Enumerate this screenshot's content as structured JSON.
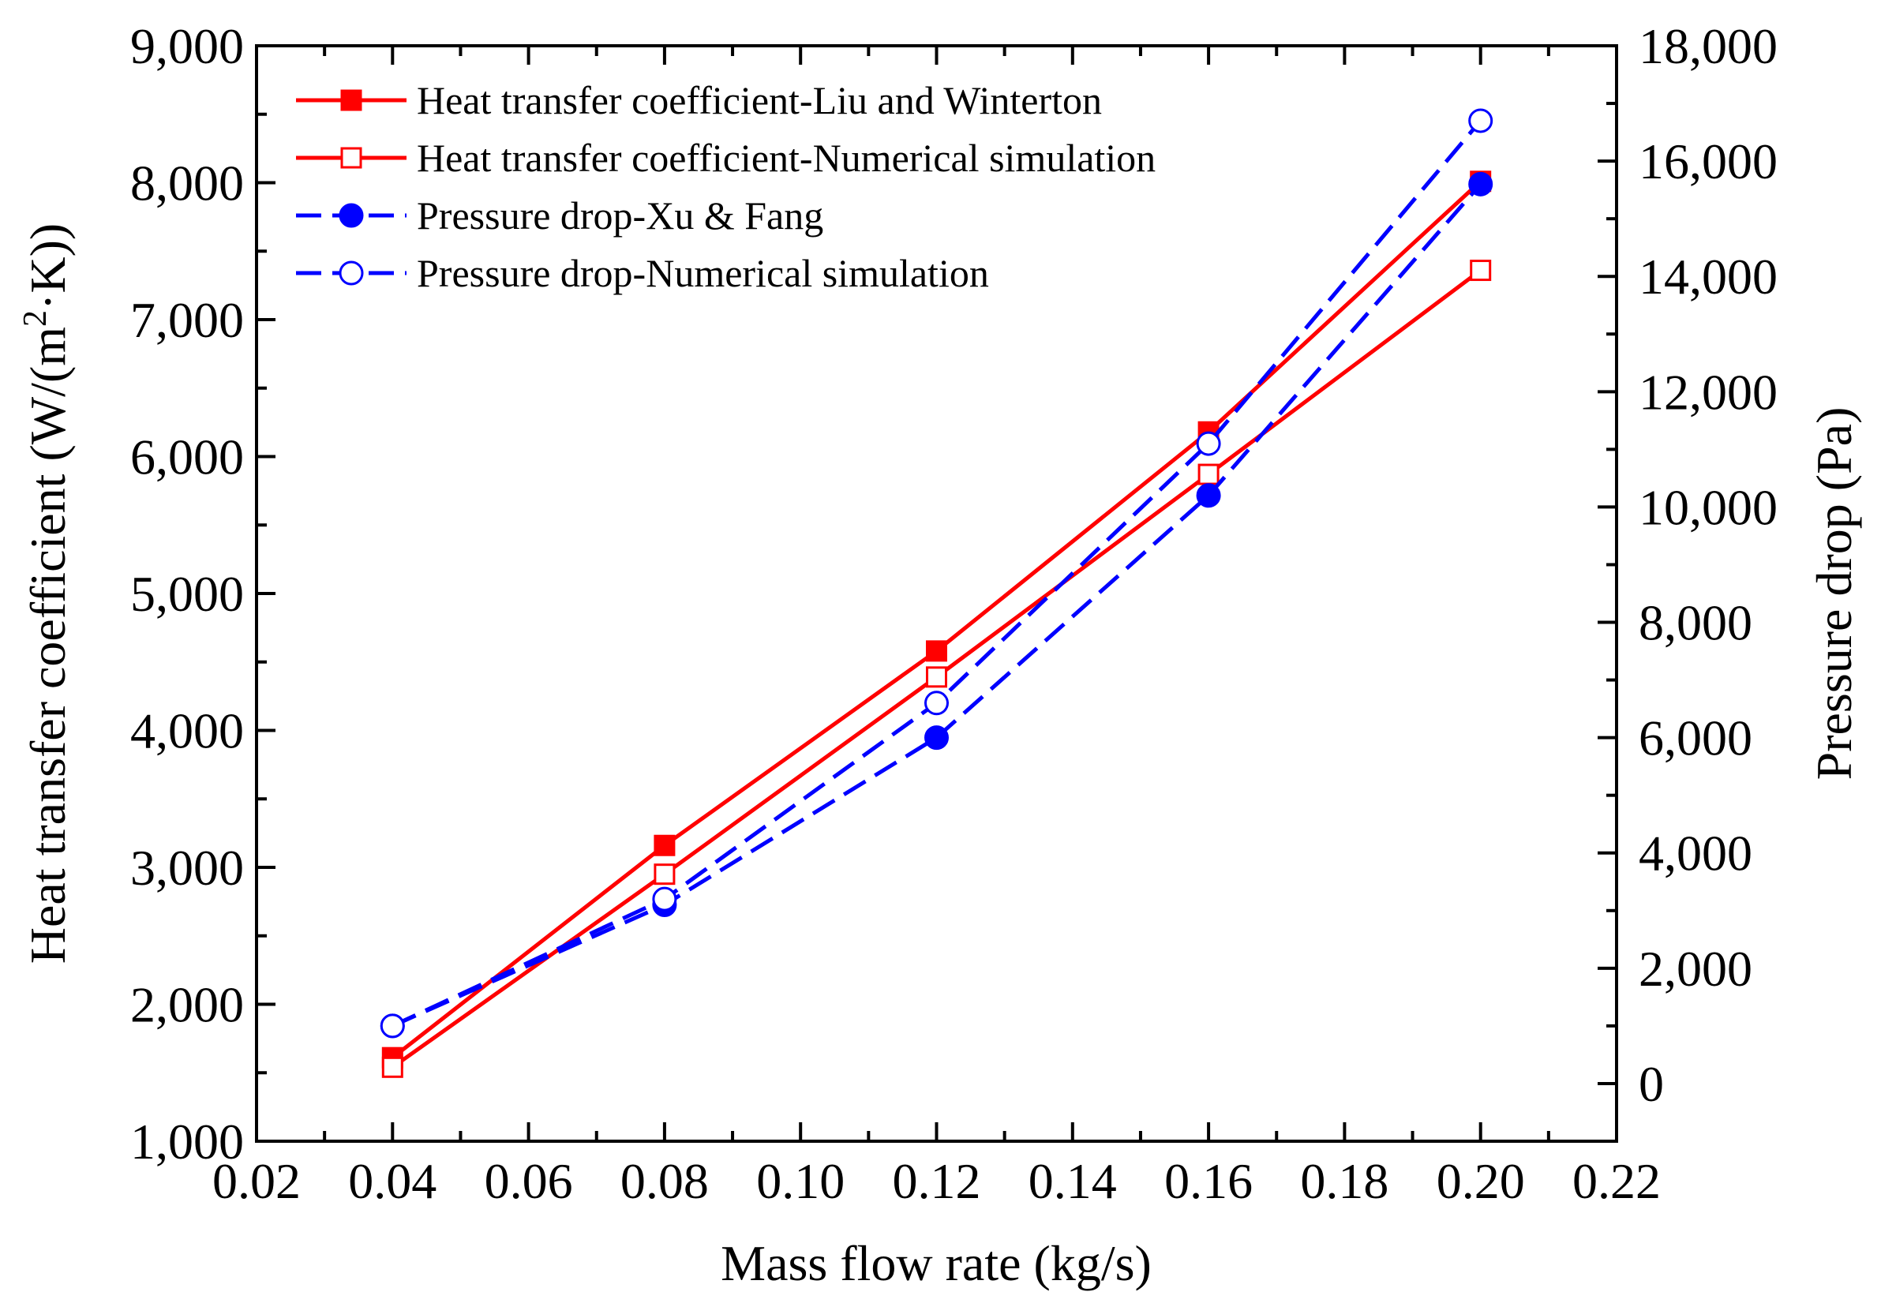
{
  "chart_data": {
    "type": "line",
    "title": "",
    "xlabel": "Mass flow rate (kg/s)",
    "ylabel_parts": [
      "Heat transfer coefficient (W/(m",
      "2",
      "·K))"
    ],
    "ylabel": "Heat transfer coefficient (W/(m2·K))",
    "y2label": "Pressure drop (Pa)",
    "xlim": [
      0.02,
      0.22
    ],
    "ylim": [
      1000,
      9000
    ],
    "y2lim": [
      -1000,
      18000
    ],
    "x_ticks": [
      "0.02",
      "0.04",
      "0.06",
      "0.08",
      "0.10",
      "0.12",
      "0.14",
      "0.16",
      "0.18",
      "0.20",
      "0.22"
    ],
    "y_ticks": [
      "1,000",
      "2,000",
      "3,000",
      "4,000",
      "5,000",
      "6,000",
      "7,000",
      "8,000",
      "9,000"
    ],
    "y2_ticks": [
      "0",
      "2,000",
      "4,000",
      "6,000",
      "8,000",
      "10,000",
      "12,000",
      "14,000",
      "16,000",
      "18,000"
    ],
    "legend_position": "top-left",
    "series": [
      {
        "name": "Heat transfer coefficient-Liu and Winterton",
        "axis": "left",
        "color": "#ff0000",
        "dash": "solid",
        "marker": "square-filled",
        "x": [
          0.04,
          0.08,
          0.12,
          0.16,
          0.2
        ],
        "y": [
          1610,
          3160,
          4580,
          6180,
          8010
        ]
      },
      {
        "name": "Heat transfer coefficient-Numerical simulation",
        "axis": "left",
        "color": "#ff0000",
        "dash": "solid",
        "marker": "square-open",
        "x": [
          0.04,
          0.08,
          0.12,
          0.16,
          0.2
        ],
        "y": [
          1540,
          2950,
          4390,
          5870,
          7360
        ]
      },
      {
        "name": "Pressure drop-Xu & Fang",
        "axis": "right",
        "color": "#0000ff",
        "dash": "dashed",
        "marker": "circle-filled",
        "x": [
          0.04,
          0.08,
          0.12,
          0.16,
          0.2
        ],
        "y": [
          1000,
          3100,
          6000,
          10200,
          15600
        ]
      },
      {
        "name": "Pressure drop-Numerical simulation",
        "axis": "right",
        "color": "#0000ff",
        "dash": "dashed",
        "marker": "circle-open",
        "x": [
          0.04,
          0.08,
          0.12,
          0.16,
          0.2
        ],
        "y": [
          1000,
          3200,
          6600,
          11100,
          16700
        ]
      }
    ]
  }
}
